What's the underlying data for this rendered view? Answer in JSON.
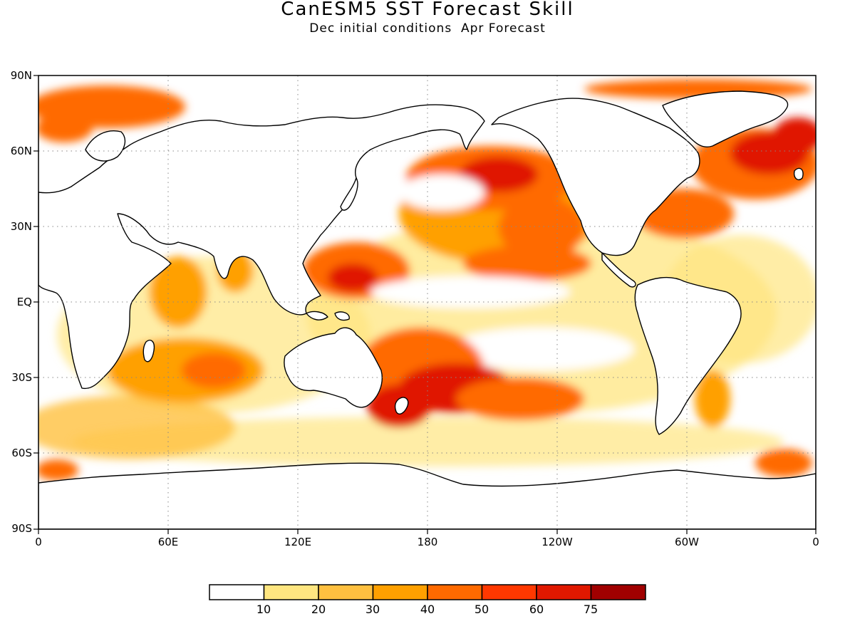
{
  "title": "CanESM5 SST Forecast Skill",
  "subtitle": "Dec initial conditions  Apr Forecast",
  "y_axis_labels": [
    "90N",
    "60N",
    "30N",
    "EQ",
    "30S",
    "60S",
    "90S"
  ],
  "x_axis_labels": [
    "0",
    "60E",
    "120E",
    "180",
    "120W",
    "60W",
    "0"
  ],
  "colorbar": {
    "labels": [
      "10",
      "20",
      "30",
      "40",
      "50",
      "60",
      "75"
    ],
    "colors": [
      "#ffffff",
      "#ffe680",
      "#ffc040",
      "#ffa000",
      "#ff6a00",
      "#ff3800",
      "#e01800",
      "#a00000"
    ]
  },
  "colors": {
    "land": "#ffffff",
    "coastline": "#000000",
    "grid": "#888888"
  },
  "legend_placement": "bottom-center"
}
